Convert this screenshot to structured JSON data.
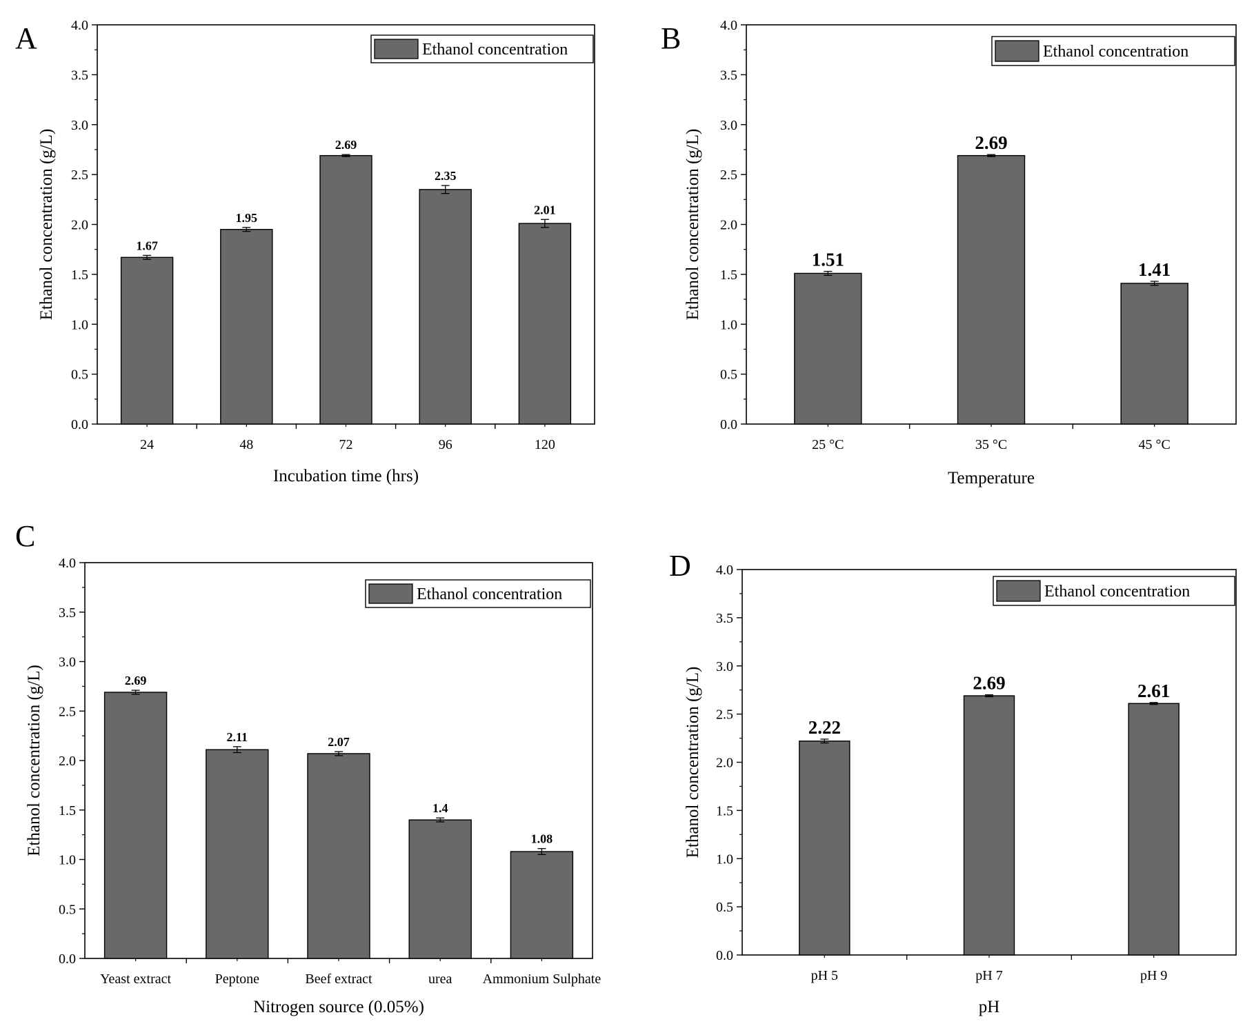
{
  "chart_data": [
    {
      "panel_letter": "A",
      "type": "bar",
      "categories": [
        "24",
        "48",
        "72",
        "96",
        "120"
      ],
      "values": [
        1.67,
        1.95,
        2.69,
        2.35,
        2.01
      ],
      "value_labels": [
        "1.67",
        "1.95",
        "2.69",
        "2.35",
        "2.01"
      ],
      "errors": [
        0.02,
        0.02,
        0.01,
        0.04,
        0.04
      ],
      "series": [
        {
          "name": "Ethanol concentration"
        }
      ],
      "xlabel": "Incubation time (hrs)",
      "ylabel": "Ethanol concentration (g/L)",
      "ylim": [
        0,
        4.0
      ],
      "yticks": [
        "0.0",
        "0.5",
        "1.0",
        "1.5",
        "2.0",
        "2.5",
        "3.0",
        "3.5",
        "4.0"
      ],
      "legend": "top-right",
      "grid": false,
      "bar_color": "#696969"
    },
    {
      "panel_letter": "B",
      "type": "bar",
      "categories": [
        "25 °C",
        "35 °C",
        "45 °C"
      ],
      "values": [
        1.51,
        2.69,
        1.41
      ],
      "value_labels": [
        "1.51",
        "2.69",
        "1.41"
      ],
      "errors": [
        0.02,
        0.01,
        0.02
      ],
      "series": [
        {
          "name": "Ethanol concentration"
        }
      ],
      "xlabel": "Temperature",
      "ylabel": "Ethanol concentration (g/L)",
      "ylim": [
        0,
        4.0
      ],
      "yticks": [
        "0.0",
        "0.5",
        "1.0",
        "1.5",
        "2.0",
        "2.5",
        "3.0",
        "3.5",
        "4.0"
      ],
      "legend": "top-right",
      "grid": false,
      "bar_color": "#696969"
    },
    {
      "panel_letter": "C",
      "type": "bar",
      "categories": [
        "Yeast extract",
        "Peptone",
        "Beef extract",
        "urea",
        "Ammonium Sulphate"
      ],
      "values": [
        2.69,
        2.11,
        2.07,
        1.4,
        1.08
      ],
      "value_labels": [
        "2.69",
        "2.11",
        "2.07",
        "1.4",
        "1.08"
      ],
      "errors": [
        0.02,
        0.03,
        0.02,
        0.02,
        0.03
      ],
      "series": [
        {
          "name": "Ethanol concentration"
        }
      ],
      "xlabel": "Nitrogen source (0.05%)",
      "ylabel": "Ethanol concentration (g/L)",
      "ylim": [
        0,
        4.0
      ],
      "yticks": [
        "0.0",
        "0.5",
        "1.0",
        "1.5",
        "2.0",
        "2.5",
        "3.0",
        "3.5",
        "4.0"
      ],
      "legend": "top-right",
      "grid": false,
      "bar_color": "#696969"
    },
    {
      "panel_letter": "D",
      "type": "bar",
      "categories": [
        "pH 5",
        "pH 7",
        "pH 9"
      ],
      "values": [
        2.22,
        2.69,
        2.61
      ],
      "value_labels": [
        "2.22",
        "2.69",
        "2.61"
      ],
      "errors": [
        0.02,
        0.01,
        0.01
      ],
      "series": [
        {
          "name": "Ethanol concentration"
        }
      ],
      "xlabel": "pH",
      "ylabel": "Ethanol concentration (g/L)",
      "ylim": [
        0,
        4.0
      ],
      "yticks": [
        "0.0",
        "0.5",
        "1.0",
        "1.5",
        "2.0",
        "2.5",
        "3.0",
        "3.5",
        "4.0"
      ],
      "legend": "top-right",
      "grid": false,
      "bar_color": "#696969"
    }
  ]
}
